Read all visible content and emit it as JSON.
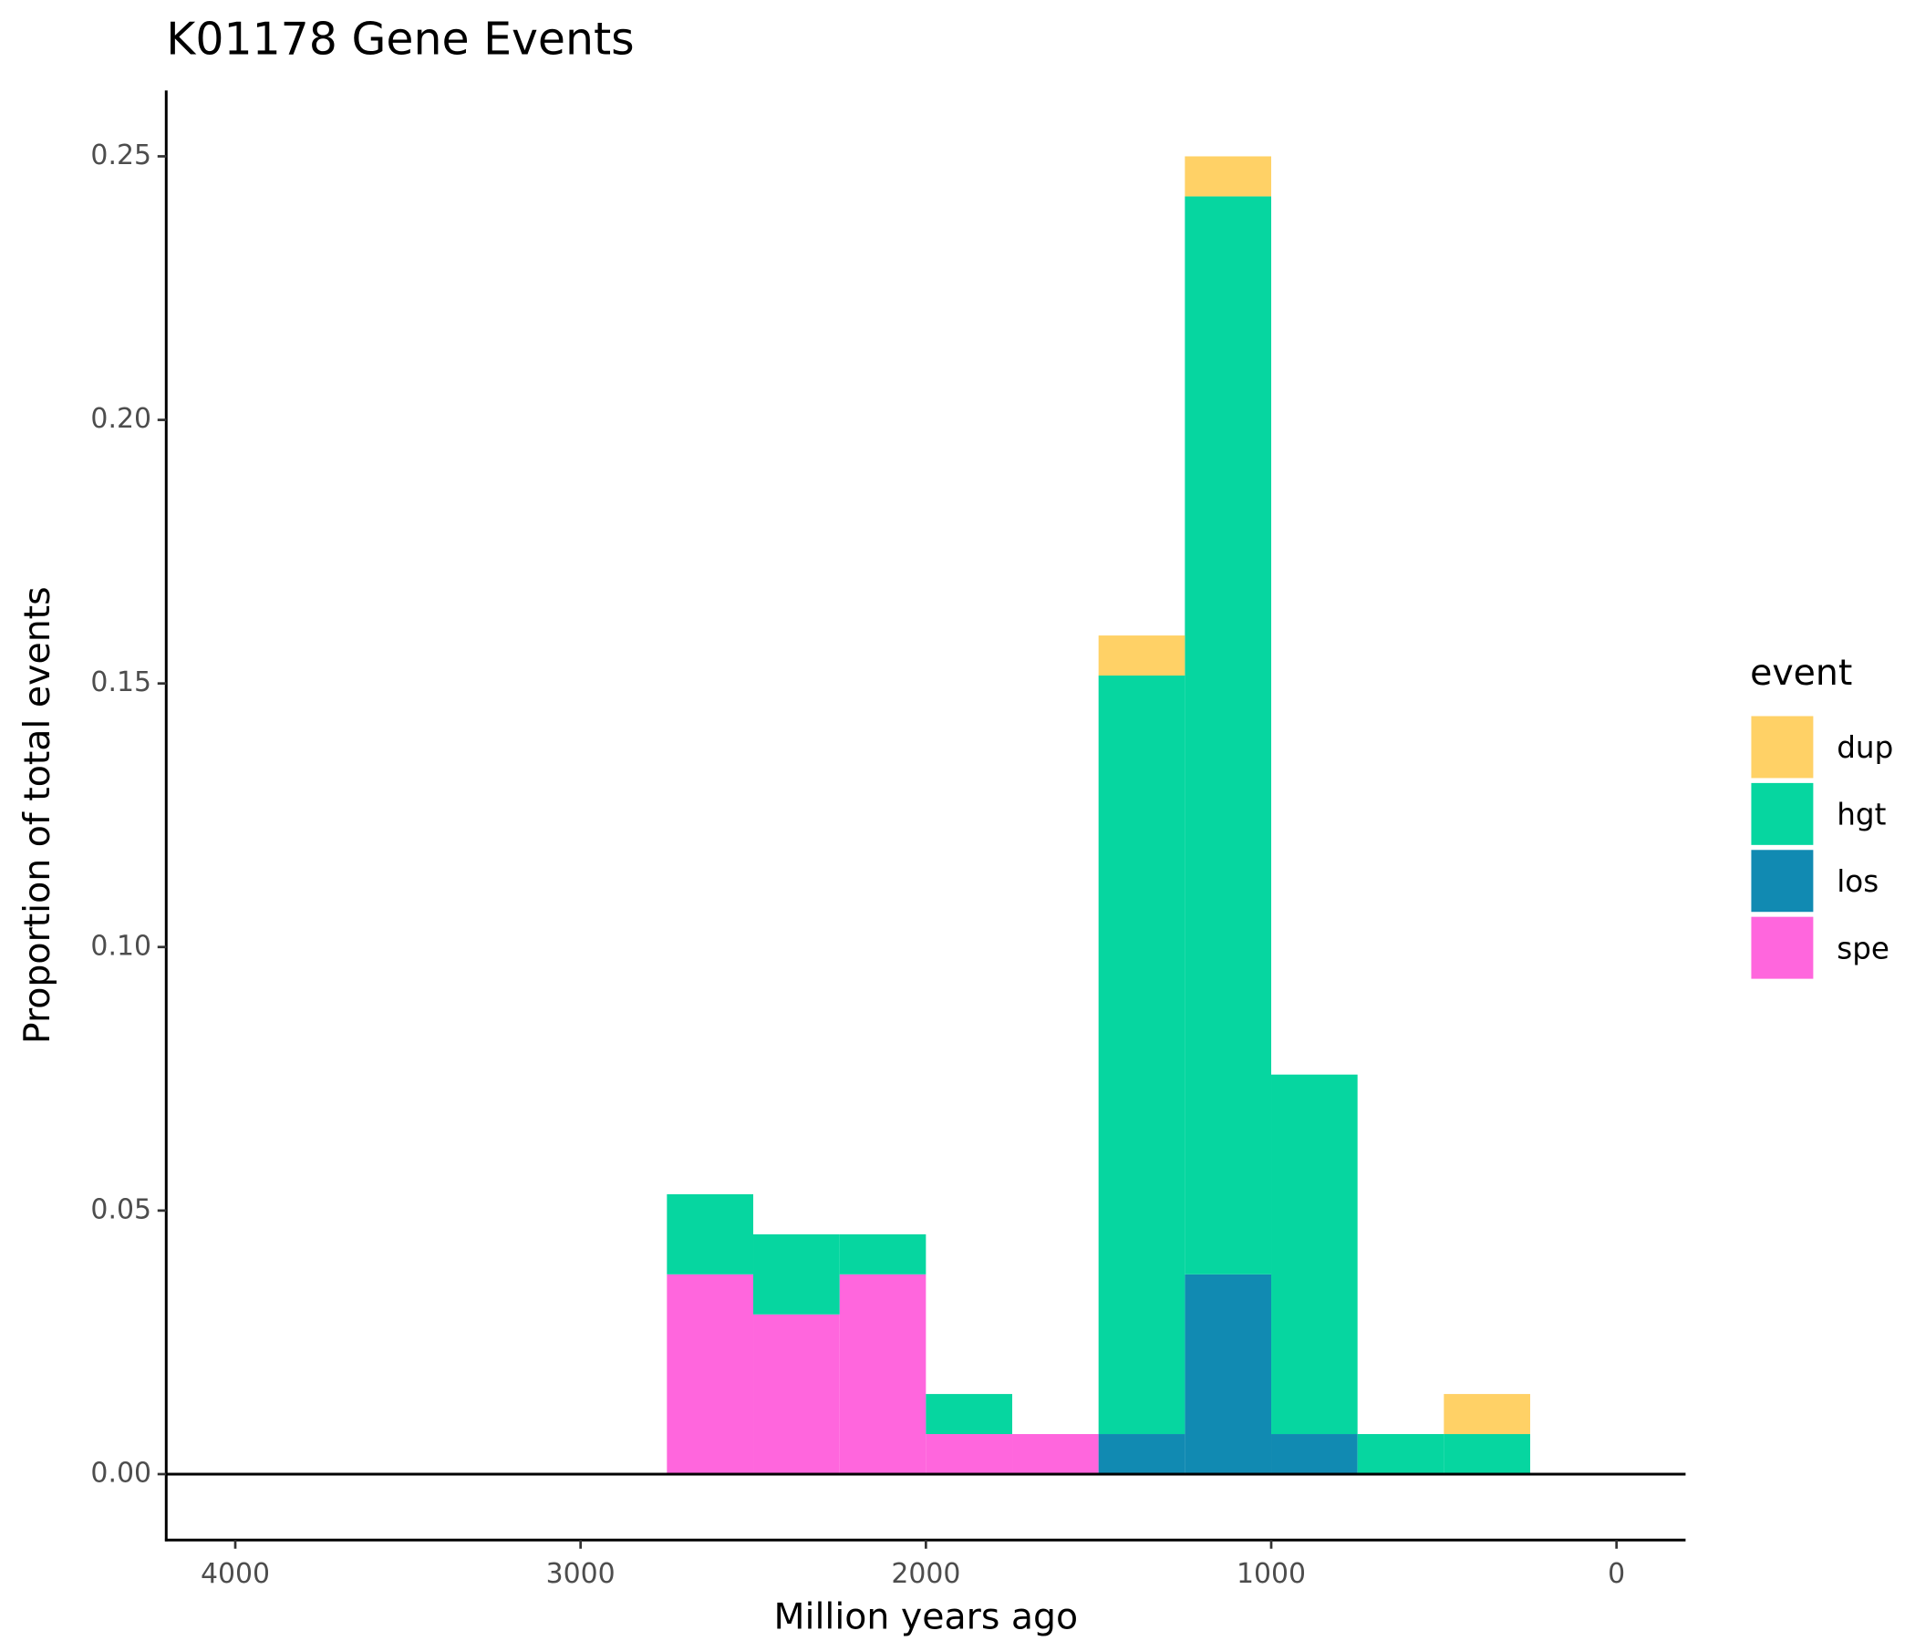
{
  "chart_data": {
    "type": "histogram",
    "title": "K01178 Gene Events",
    "x_label": "Million years ago",
    "y_label": "Proportion of total events",
    "bins": [
      2750,
      2500,
      2250,
      2000,
      1750,
      1500,
      1250,
      1000,
      750,
      500,
      250
    ],
    "series": [
      {
        "name": "dup",
        "color": "#FFD166",
        "values": [
          0,
          0,
          0,
          0,
          0,
          0.0076,
          0.0076,
          0,
          0,
          0.0076
        ]
      },
      {
        "name": "hgt",
        "color": "#06D6A0",
        "values": [
          0.0152,
          0.0152,
          0.0076,
          0.0076,
          0,
          0.1439,
          0.2045,
          0.0682,
          0.0076,
          0.0076
        ]
      },
      {
        "name": "los",
        "color": "#118AB2",
        "values": [
          0,
          0,
          0,
          0,
          0,
          0.0076,
          0.0379,
          0.0076,
          0,
          0
        ]
      },
      {
        "name": "spe",
        "color": "#FF66DD",
        "values": [
          0.0379,
          0.0303,
          0.0379,
          0.0076,
          0.0076,
          0,
          0,
          0,
          0,
          0
        ]
      }
    ],
    "legend_title": "event",
    "legend_position": "right",
    "xlim": [
      4200,
      -200
    ],
    "xticks": [
      4000,
      3000,
      2000,
      1000,
      0
    ],
    "ylim": [
      -0.0125,
      0.2625
    ],
    "yticks": [
      {
        "value": 0,
        "label": "0.00"
      },
      {
        "value": 0.05,
        "label": "0.05"
      },
      {
        "value": 0.1,
        "label": "0.10"
      },
      {
        "value": 0.15,
        "label": "0.15"
      },
      {
        "value": 0.2,
        "label": "0.20"
      },
      {
        "value": 0.25,
        "label": "0.25"
      }
    ],
    "grid": false
  }
}
